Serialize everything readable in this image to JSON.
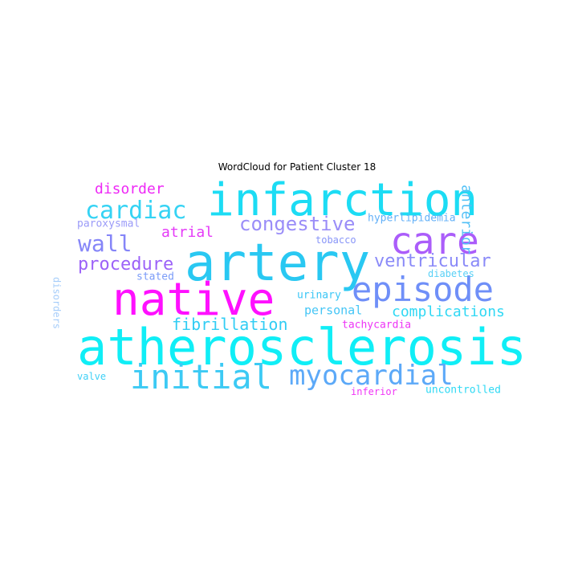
{
  "title": "WordCloud for Patient Cluster 18",
  "words": [
    {
      "key": "atherosclerosis",
      "text": "atherosclerosis",
      "color": "#10eef6"
    },
    {
      "key": "infarction",
      "text": "infarction",
      "color": "#1cdcf4"
    },
    {
      "key": "artery",
      "text": "artery",
      "color": "#29c8f2"
    },
    {
      "key": "native",
      "text": "native",
      "color": "#ff10ff"
    },
    {
      "key": "care",
      "text": "care",
      "color": "#ab5dfa"
    },
    {
      "key": "episode",
      "text": "episode",
      "color": "#6f8ff8"
    },
    {
      "key": "initial",
      "text": "initial",
      "color": "#3ccaf4"
    },
    {
      "key": "myocardial",
      "text": "myocardial",
      "color": "#5ca9f8"
    },
    {
      "key": "cardiac",
      "text": "cardiac",
      "color": "#35d3f4"
    },
    {
      "key": "wall",
      "text": "wall",
      "color": "#8585f8"
    },
    {
      "key": "congestive",
      "text": "congestive",
      "color": "#9a8df8"
    },
    {
      "key": "ventricular",
      "text": "ventricular",
      "color": "#8a8af8"
    },
    {
      "key": "procedure",
      "text": "procedure",
      "color": "#9c62f8"
    },
    {
      "key": "fibrillation",
      "text": "fibrillation",
      "color": "#31cdf4"
    },
    {
      "key": "complications",
      "text": "complications",
      "color": "#30d8f4"
    },
    {
      "key": "disorder",
      "text": "disorder",
      "color": "#ee28f6"
    },
    {
      "key": "atrial",
      "text": "atrial",
      "color": "#e53af8"
    },
    {
      "key": "anterior",
      "text": "anterior",
      "color": "#52c0f6"
    },
    {
      "key": "personal",
      "text": "personal",
      "color": "#45c6f6"
    },
    {
      "key": "hyperlipidemia",
      "text": "hyperlipidemia",
      "color": "#62b0f8"
    },
    {
      "key": "tachycardia",
      "text": "tachycardia",
      "color": "#ed34f6"
    },
    {
      "key": "paroxysmal",
      "text": "paroxysmal",
      "color": "#9a9af8"
    },
    {
      "key": "tobacco",
      "text": "tobacco",
      "color": "#8895f8"
    },
    {
      "key": "stated",
      "text": "stated",
      "color": "#7b9cf8"
    },
    {
      "key": "urinary",
      "text": "urinary",
      "color": "#3ac6f6"
    },
    {
      "key": "diabetes",
      "text": "diabetes",
      "color": "#58d0f6"
    },
    {
      "key": "disorders",
      "text": "disorders",
      "color": "#a6cdfa"
    },
    {
      "key": "valve",
      "text": "valve",
      "color": "#3fd0f6"
    },
    {
      "key": "inferior",
      "text": "inferior",
      "color": "#f035f6"
    },
    {
      "key": "uncontrolled",
      "text": "uncontrolled",
      "color": "#2ed9f4"
    }
  ]
}
